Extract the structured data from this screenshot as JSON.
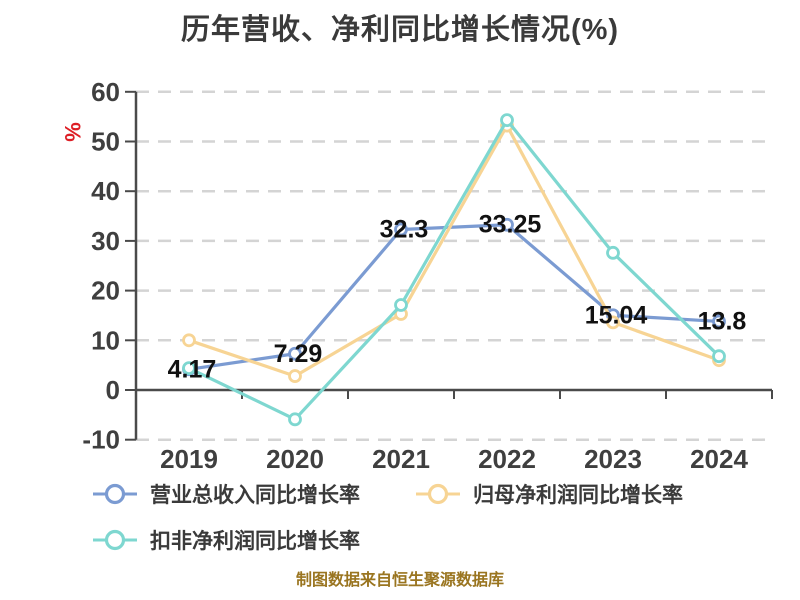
{
  "header": {
    "title": "历年营收、净利同比增长情况(%)"
  },
  "chart_data": {
    "type": "line",
    "title": "历年营收、净利同比增长情况(%)",
    "unit_label": "%",
    "categories": [
      "2019",
      "2020",
      "2021",
      "2022",
      "2023",
      "2024"
    ],
    "series": [
      {
        "name": "营业总收入同比增长率",
        "color": "#7b9bd2",
        "values": [
          4.17,
          7.29,
          32.3,
          33.25,
          15.04,
          13.8
        ],
        "show_labels": true,
        "point_labels": [
          "4.17",
          "7.29",
          "32.3",
          "33.25",
          "15.04",
          "13.8"
        ]
      },
      {
        "name": "归母净利润同比增长率",
        "color": "#f7d494",
        "values": [
          10.0,
          2.8,
          15.3,
          53.2,
          13.6,
          6.0
        ],
        "show_labels": false,
        "point_labels": []
      },
      {
        "name": "扣非净利润同比增长率",
        "color": "#7ed7d0",
        "values": [
          4.4,
          -5.9,
          17.1,
          54.3,
          27.6,
          6.8
        ],
        "show_labels": false,
        "point_labels": []
      }
    ],
    "yticks": [
      60,
      50,
      40,
      30,
      20,
      10,
      0,
      -10
    ],
    "ylim": [
      -10,
      60
    ],
    "grid": "horizontal-dashed",
    "legend_position": "bottom-left-two-rows",
    "xlabel": "",
    "ylabel": "%",
    "colors": {
      "title_text": "#3a3a3a",
      "axis_text": "#3f3f3f",
      "axis_line": "#4a4a4a",
      "grid_line": "#d4d4d4",
      "data_label": "#111111",
      "marker_fill": "#ffffff",
      "unit_label": "#dd1e25",
      "footer_text": "#9a7520"
    }
  },
  "footer": {
    "source_note": "制图数据来自恒生聚源数据库"
  }
}
